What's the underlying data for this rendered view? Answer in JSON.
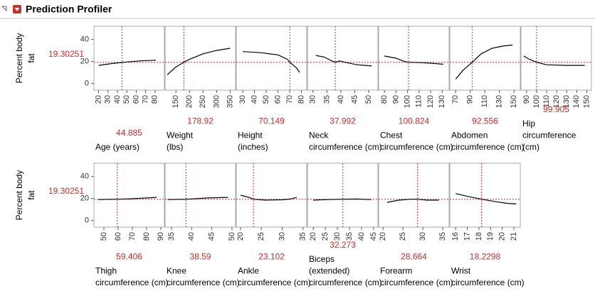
{
  "title": "Prediction Profiler",
  "chart_data": {
    "type": "profiler",
    "curve_color": "#000000",
    "current_color": "#d42a2a",
    "rows": [
      {
        "y_label": [
          "Percent body",
          "fat"
        ],
        "current_y": 19.30251,
        "ylim": [
          -6,
          52
        ],
        "yticks": [
          0,
          20,
          40
        ],
        "panels": [
          {
            "type": "line",
            "x_label": [
              "Age (years)"
            ],
            "current_x": 44.885,
            "xlim": [
              15,
              90
            ],
            "xticks": [
              20,
              30,
              40,
              50,
              60,
              70,
              80
            ],
            "x": [
              20,
              35,
              50,
              65,
              81
            ],
            "values": [
              16.5,
              18.2,
              19.6,
              20.6,
              21.2
            ]
          },
          {
            "type": "line",
            "x_label": [
              "Weight",
              "(lbs)"
            ],
            "current_x": 178.92,
            "xlim": [
              110,
              370
            ],
            "xticks": [
              150,
              200,
              250,
              300,
              350
            ],
            "x": [
              118,
              150,
              178.92,
              200,
              250,
              300,
              350
            ],
            "values": [
              8,
              15,
              19.3,
              22,
              27,
              30,
              32
            ]
          },
          {
            "type": "line",
            "x_label": [
              "Height",
              "(inches)"
            ],
            "current_x": 70.149,
            "xlim": [
              24.5,
              84.5
            ],
            "xticks": [
              30,
              40,
              50,
              60,
              70,
              80
            ],
            "x": [
              30,
              45,
              60,
              68,
              70.149,
              76,
              78.5
            ],
            "values": [
              29,
              28,
              26,
              22,
              19.3,
              14,
              10
            ]
          },
          {
            "type": "line",
            "x_label": [
              "Neck",
              "circumference (cm)"
            ],
            "current_x": 37.992,
            "xlim": [
              28,
              53.3
            ],
            "xticks": [
              30,
              35,
              40,
              45,
              50
            ],
            "x": [
              31,
              34,
              37.2,
              38,
              39.5,
              42,
              46,
              51
            ],
            "values": [
              25.5,
              24,
              20,
              19.3,
              20.5,
              19,
              17,
              16
            ]
          },
          {
            "type": "line",
            "x_label": [
              "Chest",
              "circumference (cm)"
            ],
            "current_x": 100.824,
            "xlim": [
              75,
              136
            ],
            "xticks": [
              80,
              90,
              100,
              110,
              120,
              130
            ],
            "x": [
              80,
              90,
              98,
              100.8,
              110,
              120,
              131
            ],
            "values": [
              25,
              23,
              19.8,
              19.3,
              19,
              18.5,
              17.5
            ]
          },
          {
            "type": "line",
            "x_label": [
              "Abdomen",
              "circumference (cm)"
            ],
            "current_x": 92.556,
            "xlim": [
              62,
              158.5
            ],
            "xticks": [
              70,
              90,
              110,
              130,
              150
            ],
            "x": [
              70,
              80,
              92.6,
              105,
              120,
              135,
              148
            ],
            "values": [
              4,
              12,
              19.3,
              27,
              32,
              34,
              35
            ]
          },
          {
            "type": "line",
            "x_label": [
              "Hip",
              "circumference",
              "(cm)"
            ],
            "current_x": 99.905,
            "xlim": [
              84.4,
              154.7
            ],
            "xticks": [
              90,
              100,
              110,
              120,
              130,
              140,
              150
            ],
            "x": [
              87,
              93,
              100,
              110,
              130,
              148
            ],
            "values": [
              25,
              22,
              19.3,
              17,
              16.5,
              16.5
            ]
          }
        ]
      },
      {
        "y_label": [
          "Percent body",
          "fat"
        ],
        "current_y": 19.30251,
        "ylim": [
          -6,
          52
        ],
        "yticks": [
          0,
          20,
          40
        ],
        "panels": [
          {
            "type": "line",
            "x_label": [
              "Thigh",
              "circumference (cm)"
            ],
            "current_x": 59.406,
            "xlim": [
              43,
              92.5
            ],
            "xticks": [
              50,
              60,
              70,
              80,
              90
            ],
            "x": [
              46,
              59.4,
              70,
              80,
              87
            ],
            "values": [
              19,
              19.3,
              19.8,
              20.5,
              21
            ]
          },
          {
            "type": "line",
            "x_label": [
              "Knee",
              "circumference (cm)"
            ],
            "current_x": 38.59,
            "xlim": [
              33.4,
              50.9
            ],
            "xticks": [
              35,
              40,
              45,
              50
            ],
            "x": [
              34,
              38.6,
              44,
              49
            ],
            "values": [
              19,
              19.3,
              20.5,
              21
            ]
          },
          {
            "type": "line",
            "x_label": [
              "Ankle",
              "circumference (cm)"
            ],
            "current_x": 23.102,
            "xlim": [
              19,
              35.9
            ],
            "xticks": [
              20,
              25,
              30,
              35
            ],
            "x": [
              20,
              22,
              23.1,
              26,
              30,
              32,
              33.5
            ],
            "values": [
              23,
              21,
              19.3,
              18.5,
              18.8,
              19.5,
              21
            ]
          },
          {
            "type": "line",
            "x_label": [
              "Biceps",
              "(extended)",
              "circumference (cm)"
            ],
            "current_x": 32.273,
            "xlim": [
              17.6,
              46.8
            ],
            "xticks": [
              20,
              25,
              30,
              35,
              40,
              45
            ],
            "x": [
              20,
              26,
              32.3,
              38,
              44
            ],
            "values": [
              18.5,
              19,
              19.3,
              19.5,
              19
            ]
          },
          {
            "type": "line",
            "x_label": [
              "Forearm",
              "circumference (cm)"
            ],
            "current_x": 28.664,
            "xlim": [
              18.9,
              36.6
            ],
            "xticks": [
              20,
              25,
              30,
              35
            ],
            "x": [
              21,
              24,
              27,
              28.7,
              31,
              34
            ],
            "values": [
              16.5,
              18.5,
              19.3,
              19.3,
              18.5,
              18.5
            ]
          },
          {
            "type": "line",
            "x_label": [
              "Wrist",
              "circumference (cm)"
            ],
            "current_x": 18.2298,
            "xlim": [
              15.5,
              21.55
            ],
            "xticks": [
              16,
              17,
              18,
              19,
              20,
              21
            ],
            "x": [
              16,
              17,
              18.23,
              19.5,
              20.5,
              21.2
            ],
            "values": [
              24.5,
              22,
              19.3,
              17,
              15.5,
              15
            ]
          }
        ]
      }
    ]
  }
}
